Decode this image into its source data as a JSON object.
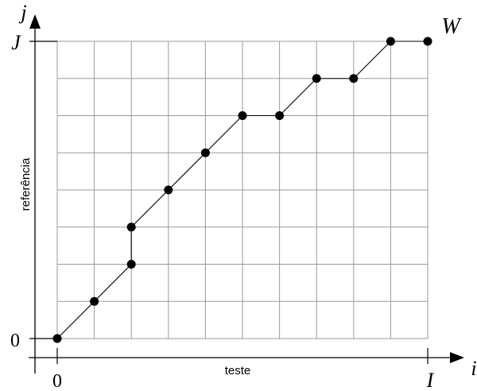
{
  "chart_data": {
    "type": "line",
    "title": "",
    "xlabel": "teste",
    "ylabel": "referência",
    "x_axis_symbol": "i",
    "y_axis_symbol": "j",
    "x_ticks": {
      "start": "0",
      "end": "I"
    },
    "y_ticks": {
      "start": "0",
      "end": "J"
    },
    "path_label": "W",
    "grid": true,
    "grid_cells": {
      "cols": 10,
      "rows": 8
    },
    "xlim": [
      0,
      10
    ],
    "ylim": [
      0,
      8
    ],
    "series": [
      {
        "points": [
          [
            0,
            0
          ],
          [
            1,
            1
          ],
          [
            2,
            2
          ],
          [
            2,
            3
          ],
          [
            3,
            4
          ],
          [
            4,
            5
          ],
          [
            5,
            6
          ],
          [
            6,
            6
          ],
          [
            7,
            7
          ],
          [
            8,
            7
          ],
          [
            9,
            8
          ],
          [
            10,
            8
          ]
        ]
      }
    ]
  }
}
